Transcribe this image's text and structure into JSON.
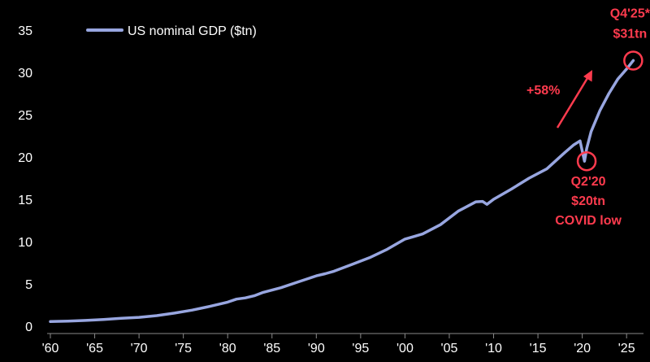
{
  "chart_data": {
    "type": "line",
    "title": "",
    "xlabel": "",
    "ylabel": "",
    "xlim": [
      1960,
      2027
    ],
    "ylim": [
      0,
      35
    ],
    "grid": false,
    "legend": "top-left",
    "y_ticks": [
      0,
      5,
      10,
      15,
      20,
      25,
      30,
      35
    ],
    "x_ticks": [
      {
        "year": 1960,
        "label": "'60"
      },
      {
        "year": 1965,
        "label": "'65"
      },
      {
        "year": 1970,
        "label": "'70"
      },
      {
        "year": 1975,
        "label": "'75"
      },
      {
        "year": 1980,
        "label": "'80"
      },
      {
        "year": 1985,
        "label": "'85"
      },
      {
        "year": 1990,
        "label": "'90"
      },
      {
        "year": 1995,
        "label": "'95"
      },
      {
        "year": 2000,
        "label": "'00"
      },
      {
        "year": 2005,
        "label": "'05"
      },
      {
        "year": 2010,
        "label": "'10"
      },
      {
        "year": 2015,
        "label": "'15"
      },
      {
        "year": 2020,
        "label": "'20"
      },
      {
        "year": 2025,
        "label": "'25"
      }
    ],
    "series": [
      {
        "name": "US nominal GDP ($tn)",
        "color": "#98a6e0",
        "x": [
          1960,
          1962,
          1964,
          1966,
          1968,
          1970,
          1972,
          1974,
          1976,
          1978,
          1980,
          1981,
          1982,
          1983,
          1984,
          1986,
          1988,
          1990,
          1991,
          1992,
          1994,
          1996,
          1998,
          2000,
          2001,
          2002,
          2004,
          2006,
          2008,
          2008.75,
          2009.25,
          2010,
          2012,
          2014,
          2016,
          2018,
          2019,
          2019.75,
          2020.25,
          2020.5,
          2021,
          2022,
          2023,
          2024,
          2025,
          2025.75
        ],
        "values": [
          0.55,
          0.6,
          0.68,
          0.8,
          0.93,
          1.05,
          1.25,
          1.55,
          1.9,
          2.35,
          2.85,
          3.2,
          3.35,
          3.6,
          4.0,
          4.55,
          5.25,
          5.95,
          6.2,
          6.5,
          7.3,
          8.1,
          9.1,
          10.3,
          10.6,
          10.9,
          12.0,
          13.6,
          14.7,
          14.75,
          14.4,
          15.0,
          16.2,
          17.5,
          18.6,
          20.5,
          21.4,
          21.9,
          19.5,
          21.0,
          23.0,
          25.5,
          27.5,
          29.2,
          30.4,
          31.4
        ]
      }
    ],
    "annotations": {
      "covid_low": {
        "x": 2020.5,
        "y": 19.5,
        "lines": [
          "Q2'20",
          "$20tn",
          "COVID low"
        ]
      },
      "latest": {
        "x": 2025.75,
        "y": 31.4,
        "lines": [
          "Q4'25*",
          "$31tn"
        ]
      },
      "growth": {
        "label": "+58%"
      }
    },
    "annotation_color": "#ff3b4e"
  }
}
